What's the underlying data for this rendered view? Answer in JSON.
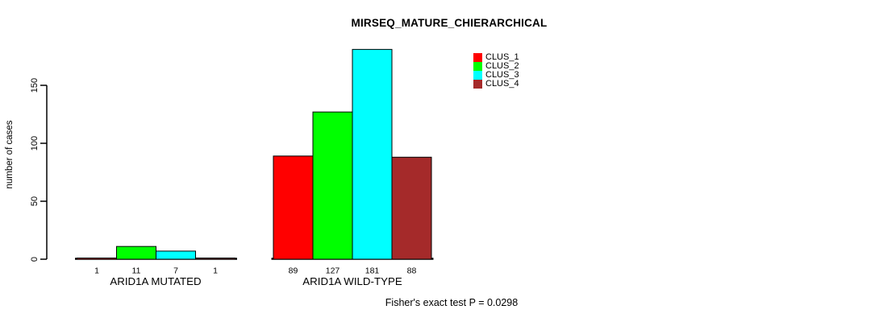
{
  "chart_data": {
    "type": "bar",
    "title": "MIRSEQ_MATURE_CHIERARCHICAL",
    "ylabel": "number of cases",
    "xlabel": "",
    "categories": [
      "ARID1A MUTATED",
      "ARID1A WILD-TYPE"
    ],
    "series": [
      {
        "name": "CLUS_1",
        "color": "#ff0000",
        "values": [
          1,
          89
        ]
      },
      {
        "name": "CLUS_2",
        "color": "#00ff00",
        "values": [
          11,
          127
        ]
      },
      {
        "name": "CLUS_3",
        "color": "#00ffff",
        "values": [
          7,
          181
        ]
      },
      {
        "name": "CLUS_4",
        "color": "#a52a2a",
        "values": [
          1,
          88
        ]
      }
    ],
    "bar_value_labels": [
      [
        1,
        11,
        7,
        1
      ],
      [
        89,
        127,
        181,
        88
      ]
    ],
    "yticks": [
      0,
      50,
      100,
      150
    ],
    "ylim": [
      0,
      185
    ],
    "grid": false,
    "legend": {
      "position": "top-right-inside",
      "entries": [
        "CLUS_1",
        "CLUS_2",
        "CLUS_3",
        "CLUS_4"
      ]
    },
    "annotation": "Fisher's exact test P = 0.0298",
    "axis_color": "#000000",
    "background_color": "#ffffff"
  }
}
